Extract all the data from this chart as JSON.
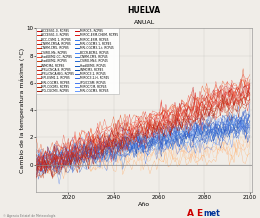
{
  "title": "HUELVA",
  "subtitle": "ANUAL",
  "xlabel": "Año",
  "ylabel": "Cambio de la temperatura máxima (°C)",
  "ylim": [
    -2,
    10
  ],
  "xlim": [
    2006,
    2101
  ],
  "yticks": [
    0,
    2,
    4,
    6,
    8,
    10
  ],
  "xticks": [
    2020,
    2040,
    2060,
    2080,
    2100
  ],
  "background_color": "#f0ede8",
  "plot_bg": "#f0ede8",
  "year_start": 2006,
  "year_end": 2100,
  "trend_rcp85": 0.058,
  "trend_rcp45": 0.032,
  "trend_rcp26": 0.014,
  "noise_scale": 0.42,
  "hline_y": 0,
  "watermark": "© Agencia Estatal de Meteorología",
  "title_fontsize": 5.5,
  "subtitle_fontsize": 4.5,
  "axis_fontsize": 4.5,
  "tick_fontsize": 4.0,
  "rcp85_colors": [
    "#cc0000",
    "#dd1111",
    "#ee2222",
    "#ff3333",
    "#cc2200",
    "#bb0000",
    "#dd3300",
    "#ee4411",
    "#ff5522",
    "#cc3311",
    "#aa0000",
    "#bb1100",
    "#cc2211",
    "#dd3322",
    "#ee4433",
    "#ff5544",
    "#cc4422",
    "#bb3311",
    "#aa2200",
    "#cc1100"
  ],
  "rcp45_colors": [
    "#1155cc",
    "#2266dd",
    "#3377ee",
    "#4488ff",
    "#1144bb",
    "#0044aa",
    "#1155bb",
    "#2266cc",
    "#3377dd",
    "#4488ee",
    "#0033aa",
    "#1144bb",
    "#2255cc",
    "#3366dd",
    "#4477ee",
    "#5588ff",
    "#6699ff",
    "#4466cc",
    "#3355bb",
    "#2244aa"
  ],
  "rcp26_colors": [
    "#ffaa77",
    "#ffbb88",
    "#ffcc99",
    "#ffaa66",
    "#ffbb77"
  ],
  "n_rcp85": 20,
  "n_rcp45": 20,
  "n_rcp26": 5,
  "legend_left": [
    [
      "ACCESS1.0, RCP85",
      "#cc0000"
    ],
    [
      "ACCESS1.3, RCP85",
      "#dd2211"
    ],
    [
      "BCC-CSM1.1, RCP85",
      "#ee3322"
    ],
    [
      "CNRM-CM5A, RCP85",
      "#cc1100"
    ],
    [
      "CNRM-CM5, RCP85",
      "#dd2200"
    ],
    [
      "CSIRO-Mk, RCP85",
      "#ee3311"
    ],
    [
      "HadGEM2-CC, RCP85",
      "#ff4422"
    ],
    [
      "HadGEM2, RCP85",
      "#cc3300"
    ],
    [
      "INMCM4, RCP85",
      "#bb2200"
    ],
    [
      "IPSL/CNCA.8, RCP85",
      "#cc2211"
    ],
    [
      "IPSL/CNCA/BIG, RCP85",
      "#dd3322"
    ],
    [
      "MPI-ESM1.2, RCP85",
      "#ee4433"
    ],
    [
      "MRI-CGCM3, RCP85",
      "#cc3311"
    ],
    [
      "MPI-CGCM3, RCP85",
      "#bb2200"
    ],
    [
      "IPG-CGCM3, RCP85",
      "#aa1100"
    ]
  ],
  "legend_right": [
    [
      "MIROC5, RCP85",
      "#cc0000"
    ],
    [
      "MIROC-ESM-CHEM, RCP85",
      "#dd1111"
    ],
    [
      "MIROC-ESM, RCP45",
      "#3377ee"
    ],
    [
      "MRI-CGCM3.1, RCP45",
      "#2266dd"
    ],
    [
      "MRI-CGCM3-1-t, RCP45",
      "#1155cc"
    ],
    [
      "BCCR-BCM2, RCP45",
      "#4488ff"
    ],
    [
      "CNRM-CM3, RCP45",
      "#3377dd"
    ],
    [
      "CSIRO-Mk3, RCP45",
      "#2266cc"
    ],
    [
      "HadGEM3, RCP45",
      "#1155bb"
    ],
    [
      "INMCM3, RCP45",
      "#0044aa"
    ],
    [
      "MIROC3.2, RCP45",
      "#2255cc"
    ],
    [
      "MIROC3.2-H, RCP45",
      "#3366dd"
    ],
    [
      "IPG/CCSM, RCP45",
      "#4477ee"
    ],
    [
      "MIROC/CM, RCP45",
      "#5588ff"
    ],
    [
      "MRI-CGCM3, RCP45",
      "#6699ff"
    ]
  ]
}
